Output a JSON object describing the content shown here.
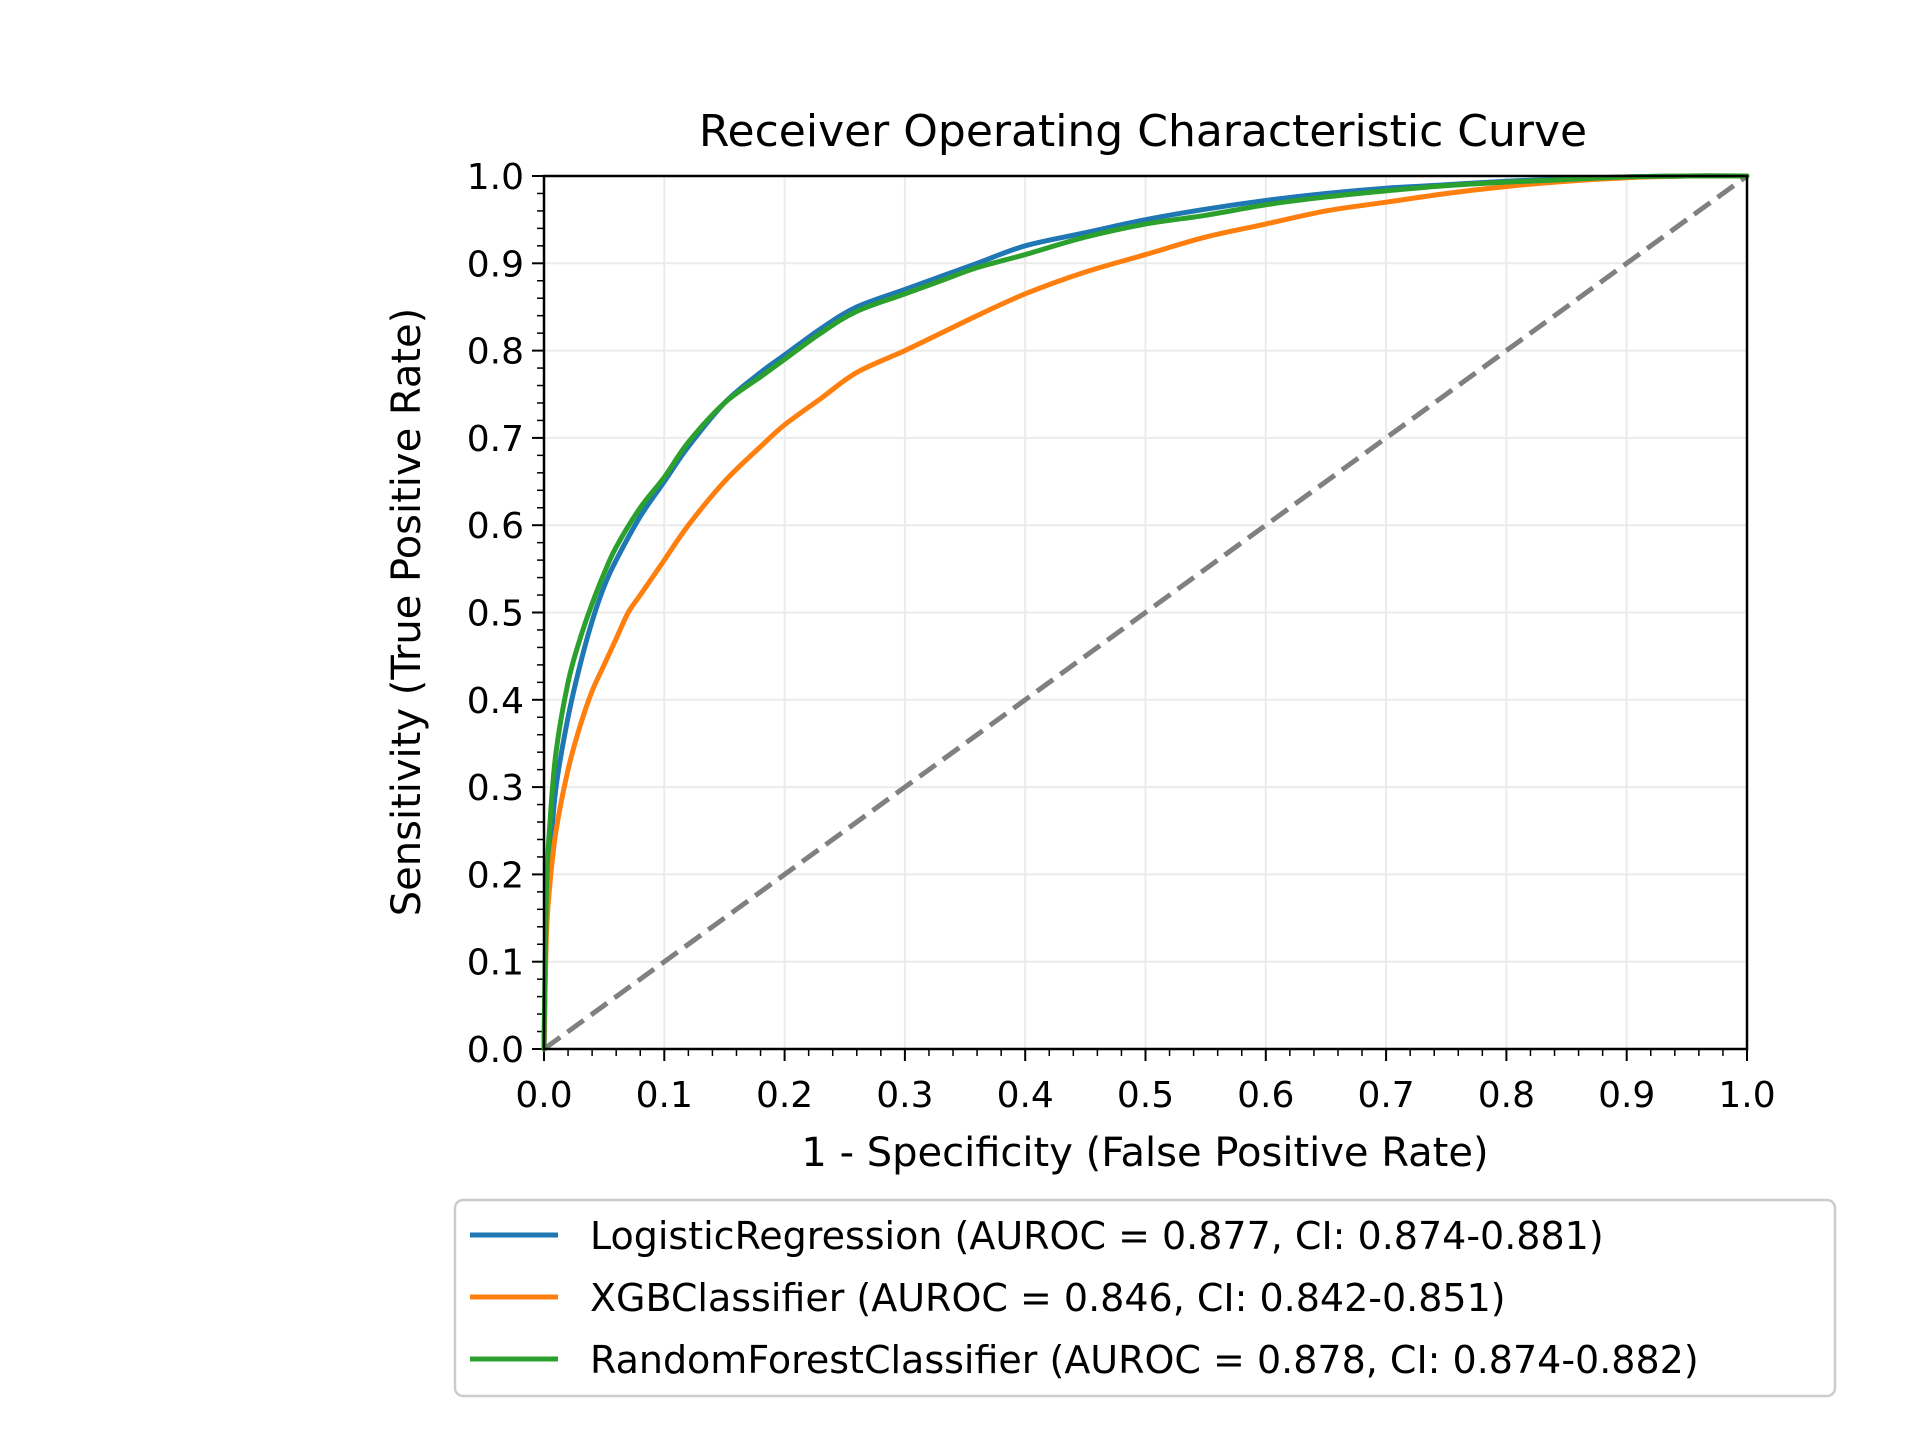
{
  "chart_data": {
    "type": "line",
    "title": "Receiver Operating Characteristic Curve",
    "xlabel": "1 - Specificity (False Positive Rate)",
    "ylabel": "Sensitivity (True Positive Rate)",
    "xlim": [
      0,
      1
    ],
    "ylim": [
      0,
      1
    ],
    "grid": true,
    "x_ticks": [
      "0.0",
      "0.1",
      "0.2",
      "0.3",
      "0.4",
      "0.5",
      "0.6",
      "0.7",
      "0.8",
      "0.9",
      "1.0"
    ],
    "y_ticks": [
      "0.0",
      "0.1",
      "0.2",
      "0.3",
      "0.4",
      "0.5",
      "0.6",
      "0.7",
      "0.8",
      "0.9",
      "1.0"
    ],
    "legend_position": "below",
    "reference_line": {
      "x": [
        0,
        1
      ],
      "y": [
        0,
        1
      ],
      "style": "dashed",
      "color": "#808080"
    },
    "series": [
      {
        "name": "LogisticRegression (AUROC = 0.877, CI: 0.874-0.881)",
        "color": "#1f77b4",
        "x": [
          0,
          0.002,
          0.005,
          0.01,
          0.02,
          0.03,
          0.04,
          0.05,
          0.06,
          0.08,
          0.1,
          0.12,
          0.15,
          0.18,
          0.2,
          0.23,
          0.26,
          0.3,
          0.33,
          0.36,
          0.4,
          0.45,
          0.5,
          0.55,
          0.6,
          0.65,
          0.7,
          0.75,
          0.8,
          0.85,
          0.9,
          0.95,
          1.0
        ],
        "y": [
          0,
          0.15,
          0.22,
          0.3,
          0.38,
          0.44,
          0.49,
          0.53,
          0.56,
          0.61,
          0.65,
          0.69,
          0.74,
          0.775,
          0.795,
          0.825,
          0.85,
          0.87,
          0.885,
          0.9,
          0.92,
          0.935,
          0.95,
          0.962,
          0.972,
          0.98,
          0.986,
          0.99,
          0.994,
          0.997,
          0.999,
          1.0,
          1.0
        ]
      },
      {
        "name": "XGBClassifier (AUROC = 0.846, CI: 0.842-0.851)",
        "color": "#ff7f0e",
        "x": [
          0,
          0.002,
          0.005,
          0.01,
          0.02,
          0.03,
          0.04,
          0.05,
          0.06,
          0.07,
          0.08,
          0.1,
          0.12,
          0.15,
          0.18,
          0.2,
          0.23,
          0.26,
          0.3,
          0.33,
          0.36,
          0.4,
          0.45,
          0.5,
          0.55,
          0.6,
          0.65,
          0.7,
          0.75,
          0.8,
          0.85,
          0.9,
          0.95,
          1.0
        ],
        "y": [
          0,
          0.13,
          0.19,
          0.25,
          0.32,
          0.37,
          0.41,
          0.44,
          0.47,
          0.5,
          0.52,
          0.56,
          0.6,
          0.65,
          0.69,
          0.715,
          0.745,
          0.775,
          0.8,
          0.82,
          0.84,
          0.865,
          0.89,
          0.91,
          0.93,
          0.945,
          0.96,
          0.97,
          0.98,
          0.988,
          0.994,
          0.998,
          1.0,
          1.0
        ]
      },
      {
        "name": "RandomForestClassifier (AUROC = 0.878, CI: 0.874-0.882)",
        "color": "#2ca02c",
        "x": [
          0,
          0.002,
          0.005,
          0.01,
          0.02,
          0.03,
          0.04,
          0.05,
          0.06,
          0.08,
          0.1,
          0.12,
          0.15,
          0.18,
          0.2,
          0.23,
          0.26,
          0.3,
          0.33,
          0.36,
          0.4,
          0.45,
          0.5,
          0.55,
          0.6,
          0.65,
          0.7,
          0.75,
          0.8,
          0.85,
          0.9,
          0.95,
          1.0
        ],
        "y": [
          0,
          0.18,
          0.26,
          0.34,
          0.42,
          0.47,
          0.51,
          0.545,
          0.575,
          0.62,
          0.655,
          0.695,
          0.74,
          0.77,
          0.79,
          0.82,
          0.845,
          0.865,
          0.88,
          0.895,
          0.91,
          0.93,
          0.945,
          0.955,
          0.967,
          0.976,
          0.983,
          0.989,
          0.993,
          0.996,
          0.999,
          1.0,
          1.0
        ]
      }
    ]
  }
}
